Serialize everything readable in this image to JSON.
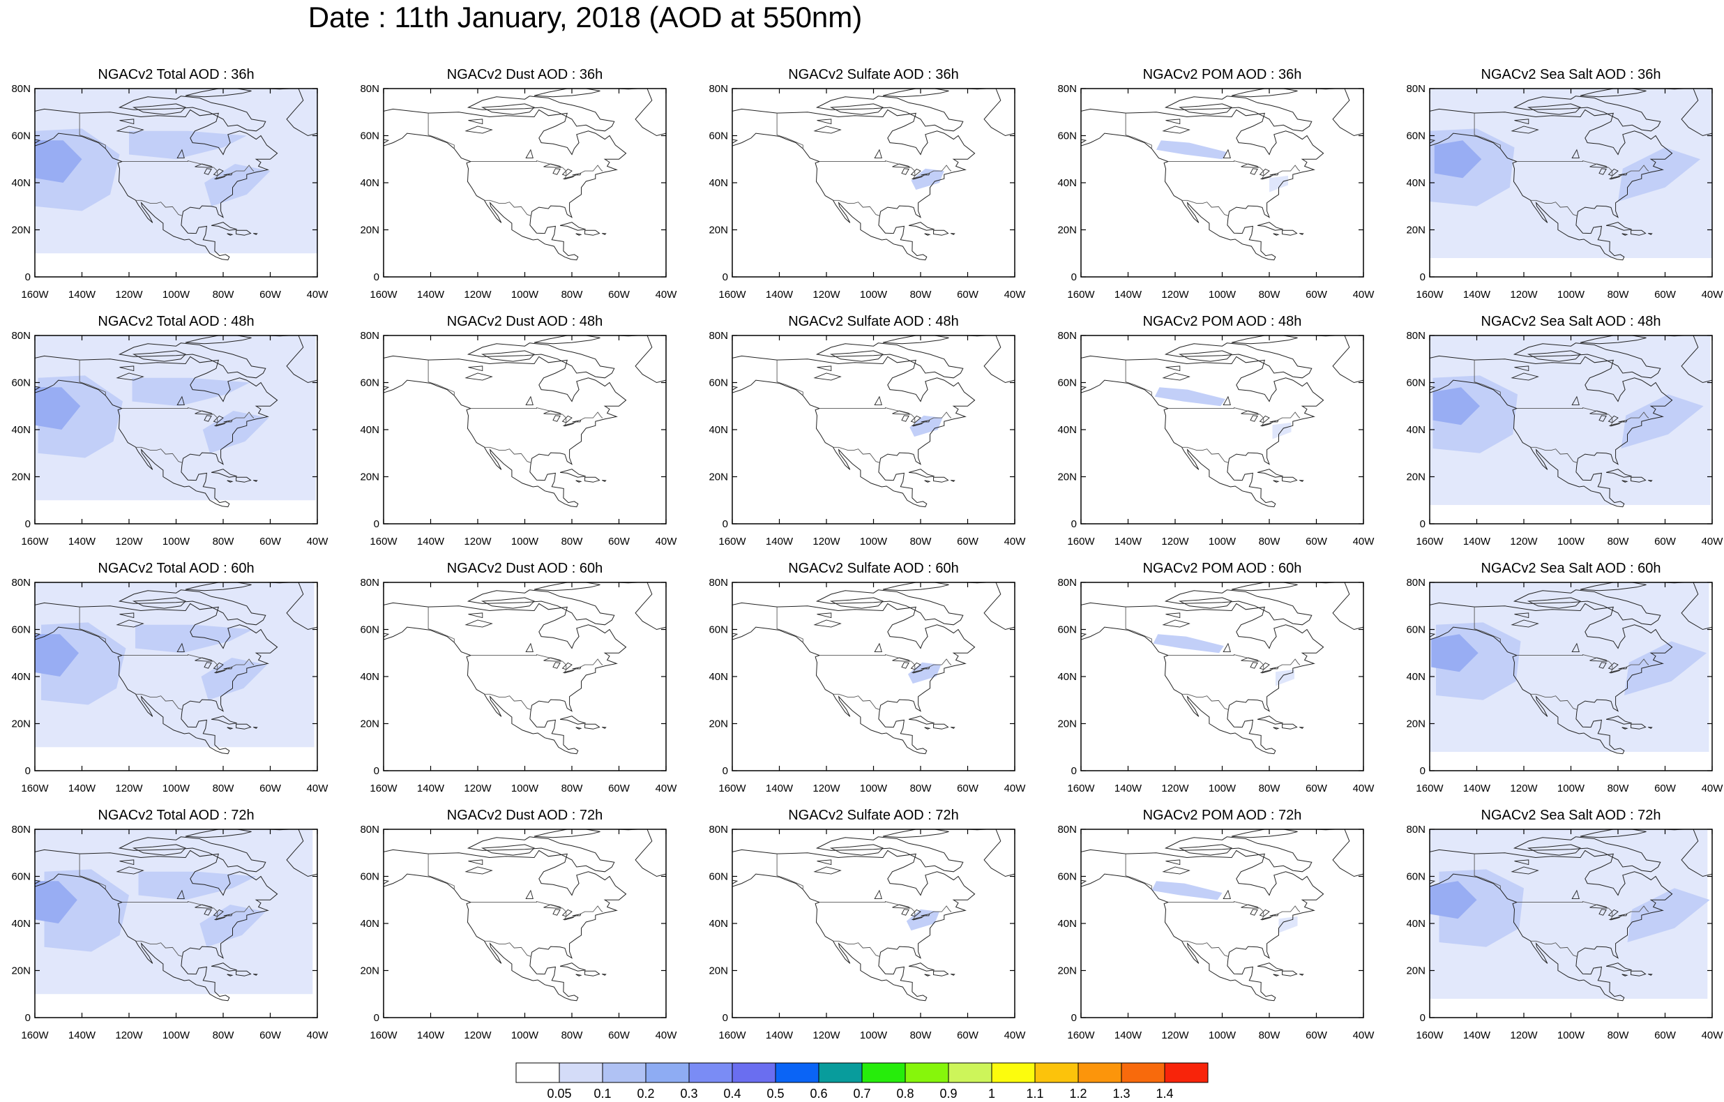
{
  "title": "Date : 11th January, 2018 (AOD at 550nm)",
  "axes": {
    "lon_labels": [
      "160W",
      "140W",
      "120W",
      "100W",
      "80W",
      "60W",
      "40W"
    ],
    "lat_labels": [
      "0",
      "20N",
      "40N",
      "60N",
      "80N"
    ],
    "lon_range": [
      -160,
      -40
    ],
    "lat_range": [
      0,
      80
    ]
  },
  "panels": [
    [
      {
        "title": "NGACv2 Total AOD : 36h",
        "species": "total",
        "hour": 36
      },
      {
        "title": "NGACv2 Dust AOD : 36h",
        "species": "dust",
        "hour": 36
      },
      {
        "title": "NGACv2 Sulfate AOD : 36h",
        "species": "sulfate",
        "hour": 36
      },
      {
        "title": "NGACv2 POM AOD : 36h",
        "species": "pom",
        "hour": 36
      },
      {
        "title": "NGACv2 Sea Salt AOD : 36h",
        "species": "seasalt",
        "hour": 36
      }
    ],
    [
      {
        "title": "NGACv2 Total AOD : 48h",
        "species": "total",
        "hour": 48
      },
      {
        "title": "NGACv2 Dust AOD : 48h",
        "species": "dust",
        "hour": 48
      },
      {
        "title": "NGACv2 Sulfate AOD : 48h",
        "species": "sulfate",
        "hour": 48
      },
      {
        "title": "NGACv2 POM AOD : 48h",
        "species": "pom",
        "hour": 48
      },
      {
        "title": "NGACv2 Sea Salt AOD : 48h",
        "species": "seasalt",
        "hour": 48
      }
    ],
    [
      {
        "title": "NGACv2 Total AOD : 60h",
        "species": "total",
        "hour": 60
      },
      {
        "title": "NGACv2 Dust AOD : 60h",
        "species": "dust",
        "hour": 60
      },
      {
        "title": "NGACv2 Sulfate AOD : 60h",
        "species": "sulfate",
        "hour": 60
      },
      {
        "title": "NGACv2 POM AOD : 60h",
        "species": "pom",
        "hour": 60
      },
      {
        "title": "NGACv2 Sea Salt AOD : 60h",
        "species": "seasalt",
        "hour": 60
      }
    ],
    [
      {
        "title": "NGACv2 Total AOD : 72h",
        "species": "total",
        "hour": 72
      },
      {
        "title": "NGACv2 Dust AOD : 72h",
        "species": "dust",
        "hour": 72
      },
      {
        "title": "NGACv2 Sulfate AOD : 72h",
        "species": "sulfate",
        "hour": 72
      },
      {
        "title": "NGACv2 POM AOD : 72h",
        "species": "pom",
        "hour": 72
      },
      {
        "title": "NGACv2 Sea Salt  AOD : 72h",
        "species": "seasalt",
        "hour": 72
      }
    ]
  ],
  "colorbar": {
    "labels": [
      "0.05",
      "0.1",
      "0.2",
      "0.3",
      "0.4",
      "0.5",
      "0.6",
      "0.7",
      "0.8",
      "0.9",
      "1",
      "1.1",
      "1.2",
      "1.3",
      "1.4"
    ],
    "colors": [
      "#ffffff",
      "#d4dcf8",
      "#b0c2f4",
      "#8eacf3",
      "#7a8cf5",
      "#6a6ef0",
      "#0a64f6",
      "#089c9c",
      "#26ed0b",
      "#86f60b",
      "#cdf55a",
      "#fcfc0d",
      "#fcc30b",
      "#fc950b",
      "#f86a0c",
      "#f8240a"
    ]
  },
  "colors": {
    "plume_light": "#dfe6fb",
    "plume_mid": "#c2cff8",
    "plume_strong": "#98adf3",
    "plume_core": "#7d92ef",
    "coastline": "#222222"
  }
}
